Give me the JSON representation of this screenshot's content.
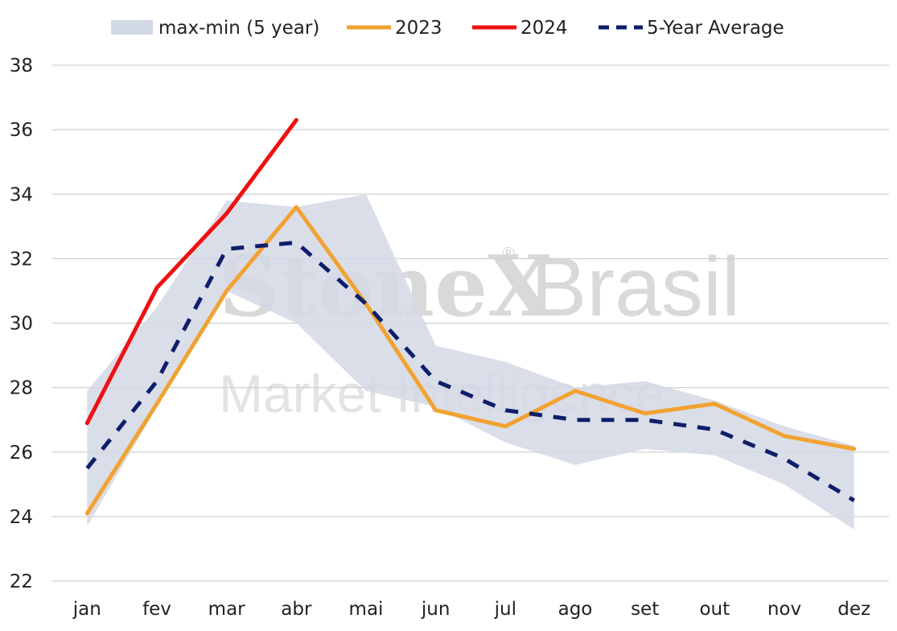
{
  "watermark": {
    "brand": "StoneX",
    "registered": "®",
    "brand_suffix": "Brasil",
    "tagline": "Market Intelligence"
  },
  "chart_data": {
    "type": "line",
    "title": "",
    "xlabel": "",
    "ylabel": "",
    "categories": [
      "jan",
      "fev",
      "mar",
      "abr",
      "mai",
      "jun",
      "jul",
      "ago",
      "set",
      "out",
      "nov",
      "dez"
    ],
    "ylim": [
      22,
      38
    ],
    "yticks": [
      22,
      24,
      26,
      28,
      30,
      32,
      34,
      36,
      38
    ],
    "grid": true,
    "legend_position": "top",
    "band": {
      "name": "max-min (5 year)",
      "color": "#d3d8e5",
      "max": [
        27.9,
        30.5,
        33.8,
        33.6,
        34.0,
        29.3,
        28.8,
        28.0,
        28.2,
        27.6,
        26.8,
        26.2
      ],
      "min": [
        23.7,
        27.4,
        31.0,
        30.0,
        27.9,
        27.4,
        26.3,
        25.6,
        26.1,
        25.9,
        25.0,
        23.6
      ]
    },
    "series": [
      {
        "name": "2023",
        "color": "#f2a231",
        "dashed": false,
        "values": [
          24.1,
          27.5,
          31.0,
          33.6,
          30.6,
          27.3,
          26.8,
          27.9,
          27.2,
          27.5,
          26.5,
          26.1
        ]
      },
      {
        "name": "2024",
        "color": "#ee1111",
        "dashed": false,
        "values": [
          26.9,
          31.1,
          33.4,
          36.3,
          null,
          null,
          null,
          null,
          null,
          null,
          null,
          null
        ]
      },
      {
        "name": "5-Year Average",
        "color": "#0f1e6a",
        "dashed": true,
        "values": [
          25.5,
          28.2,
          32.3,
          32.5,
          30.6,
          28.2,
          27.3,
          27.0,
          27.0,
          26.7,
          25.8,
          24.5
        ]
      }
    ]
  }
}
